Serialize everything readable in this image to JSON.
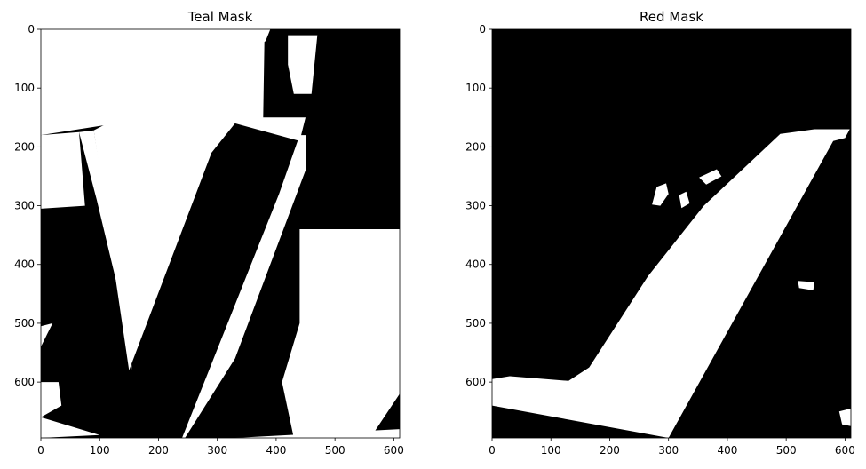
{
  "colors": {
    "mask_on": "#ffffff",
    "mask_off": "#000000",
    "axis": "#000000"
  },
  "chart_data": [
    {
      "type": "heatmap",
      "title": "Teal Mask",
      "xlabel": "",
      "ylabel": "",
      "xlim": [
        0,
        610
      ],
      "ylim": [
        695,
        0
      ],
      "grid": false,
      "x_ticks": [
        0,
        100,
        200,
        300,
        400,
        500,
        600
      ],
      "y_ticks": [
        0,
        100,
        200,
        300,
        400,
        500,
        600
      ],
      "x_tick_labels": [
        "0",
        "100",
        "200",
        "300",
        "400",
        "500",
        "600"
      ],
      "y_tick_labels": [
        "0",
        "100",
        "200",
        "300",
        "400",
        "500",
        "600"
      ],
      "white_regions": [
        [
          [
            160,
            0
          ],
          [
            390,
            0
          ],
          [
            382,
            20
          ],
          [
            160,
            155
          ],
          [
            0,
            180
          ],
          [
            0,
            0
          ]
        ],
        [
          [
            0,
            180
          ],
          [
            65,
            175
          ],
          [
            75,
            300
          ],
          [
            0,
            305
          ]
        ],
        [
          [
            65,
            175
          ],
          [
            90,
            172
          ],
          [
            155,
            580
          ],
          [
            150,
            520
          ],
          [
            95,
            290
          ]
        ],
        [
          [
            90,
            172
          ],
          [
            380,
            20
          ],
          [
            378,
            150
          ],
          [
            450,
            150
          ],
          [
            440,
            190
          ],
          [
            330,
            160
          ],
          [
            290,
            210
          ],
          [
            150,
            580
          ]
        ],
        [
          [
            0,
            505
          ],
          [
            20,
            500
          ],
          [
            0,
            540
          ]
        ],
        [
          [
            440,
            180
          ],
          [
            450,
            180
          ],
          [
            450,
            240
          ],
          [
            330,
            560
          ],
          [
            245,
            695
          ],
          [
            240,
            695
          ],
          [
            405,
            280
          ]
        ],
        [
          [
            0,
            600
          ],
          [
            30,
            600
          ],
          [
            35,
            640
          ],
          [
            0,
            660
          ]
        ],
        [
          [
            420,
            10
          ],
          [
            470,
            10
          ],
          [
            460,
            110
          ],
          [
            430,
            110
          ],
          [
            420,
            60
          ]
        ],
        [
          [
            440,
            340
          ],
          [
            610,
            340
          ],
          [
            610,
            620
          ],
          [
            560,
            695
          ],
          [
            430,
            695
          ],
          [
            410,
            600
          ],
          [
            440,
            500
          ]
        ],
        [
          [
            0,
            660
          ],
          [
            100,
            690
          ],
          [
            0,
            695
          ]
        ],
        [
          [
            330,
            695
          ],
          [
            610,
            680
          ],
          [
            610,
            695
          ]
        ]
      ],
      "black_blobs": [
        [
          [
            280,
            268
          ],
          [
            293,
            262
          ],
          [
            298,
            278
          ],
          [
            284,
            298
          ],
          [
            270,
            296
          ]
        ],
        [
          [
            310,
            280
          ],
          [
            322,
            270
          ],
          [
            330,
            292
          ],
          [
            316,
            302
          ]
        ],
        [
          [
            345,
            250
          ],
          [
            375,
            235
          ],
          [
            385,
            248
          ],
          [
            358,
            262
          ]
        ]
      ]
    },
    {
      "type": "heatmap",
      "title": "Red Mask",
      "xlabel": "",
      "ylabel": "",
      "xlim": [
        0,
        610
      ],
      "ylim": [
        695,
        0
      ],
      "grid": false,
      "x_ticks": [
        0,
        100,
        200,
        300,
        400,
        500,
        600
      ],
      "y_ticks": [
        0,
        100,
        200,
        300,
        400,
        500,
        600
      ],
      "x_tick_labels": [
        "0",
        "100",
        "200",
        "300",
        "400",
        "500",
        "600"
      ],
      "y_tick_labels": [
        "0",
        "100",
        "200",
        "300",
        "400",
        "500",
        "600"
      ],
      "white_regions": [
        [
          [
            490,
            178
          ],
          [
            548,
            170
          ],
          [
            608,
            170
          ],
          [
            600,
            185
          ],
          [
            580,
            190
          ],
          [
            300,
            695
          ],
          [
            0,
            640
          ],
          [
            0,
            595
          ],
          [
            30,
            590
          ],
          [
            130,
            598
          ],
          [
            165,
            575
          ],
          [
            265,
            420
          ],
          [
            360,
            300
          ],
          [
            440,
            225
          ]
        ],
        [
          [
            280,
            268
          ],
          [
            296,
            262
          ],
          [
            300,
            280
          ],
          [
            286,
            300
          ],
          [
            272,
            298
          ]
        ],
        [
          [
            318,
            282
          ],
          [
            330,
            276
          ],
          [
            336,
            296
          ],
          [
            322,
            304
          ]
        ],
        [
          [
            352,
            252
          ],
          [
            382,
            238
          ],
          [
            390,
            250
          ],
          [
            364,
            264
          ]
        ],
        [
          [
            520,
            428
          ],
          [
            548,
            430
          ],
          [
            546,
            444
          ],
          [
            522,
            440
          ]
        ],
        [
          [
            590,
            650
          ],
          [
            610,
            645
          ],
          [
            610,
            675
          ],
          [
            595,
            672
          ]
        ]
      ],
      "black_blobs": []
    }
  ]
}
